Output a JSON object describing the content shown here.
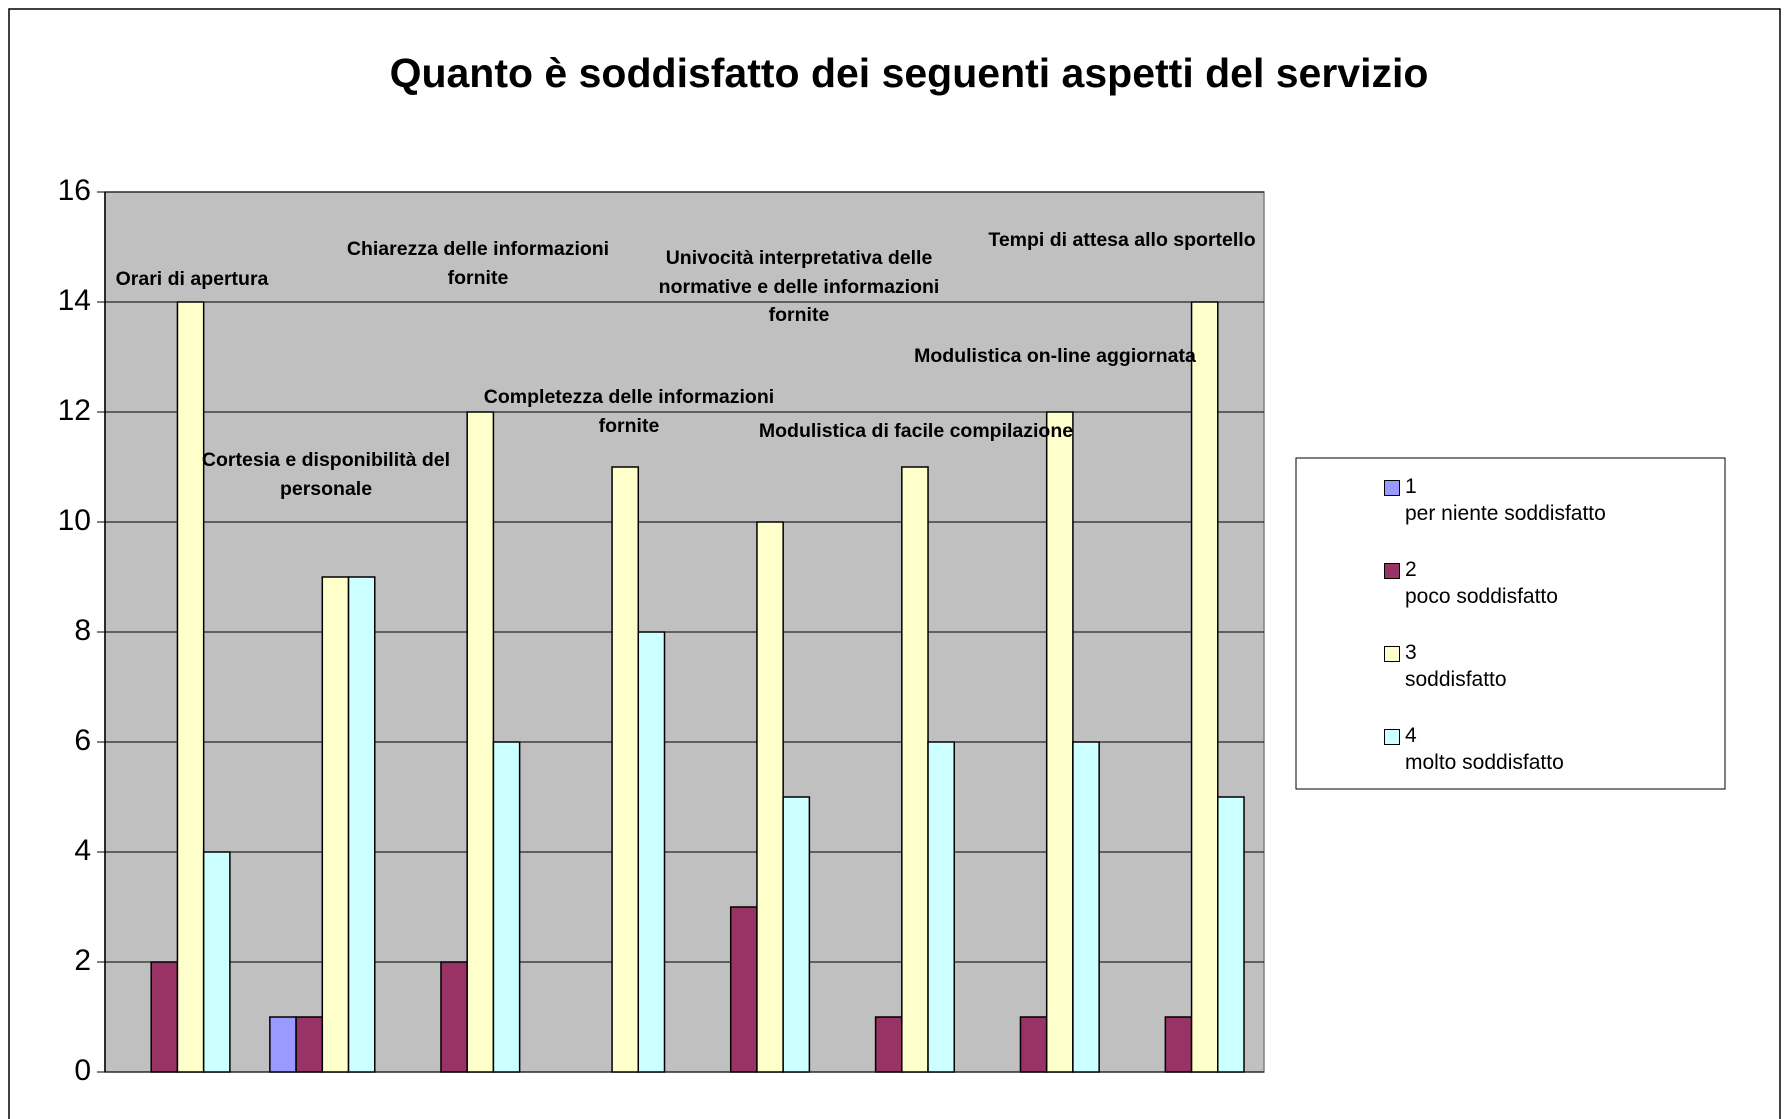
{
  "chart_data": {
    "type": "bar",
    "title": "Quanto è soddisfatto dei seguenti aspetti del servizio",
    "categories": [
      "Orari di apertura",
      "Cortesia e disponibilità del personale",
      "Chiarezza delle informazioni fornite",
      "Completezza delle informazioni fornite",
      "Univocità interpretativa delle normative e delle informazioni fornite",
      "Modulistica di facile compilazione",
      "Modulistica on-line aggiornata",
      "Tempi di attesa allo sportello"
    ],
    "series": [
      {
        "name": "1\nper niente soddisfatto",
        "color": "#9999ff",
        "values": [
          0,
          1,
          0,
          0,
          0,
          0,
          0,
          0
        ]
      },
      {
        "name": "2\npoco soddisfatto",
        "color": "#993366",
        "values": [
          2,
          1,
          2,
          0,
          3,
          1,
          1,
          1
        ]
      },
      {
        "name": "3\nsoddisfatto",
        "color": "#ffffcc",
        "values": [
          14,
          9,
          12,
          11,
          10,
          11,
          12,
          14
        ]
      },
      {
        "name": "4\nmolto soddisfatto",
        "color": "#ccffff",
        "values": [
          4,
          9,
          6,
          8,
          5,
          6,
          6,
          5
        ]
      }
    ],
    "ylim": [
      0,
      16
    ],
    "yticks": [
      0,
      2,
      4,
      6,
      8,
      10,
      12,
      14,
      16
    ],
    "grid": true,
    "legend": "right"
  }
}
